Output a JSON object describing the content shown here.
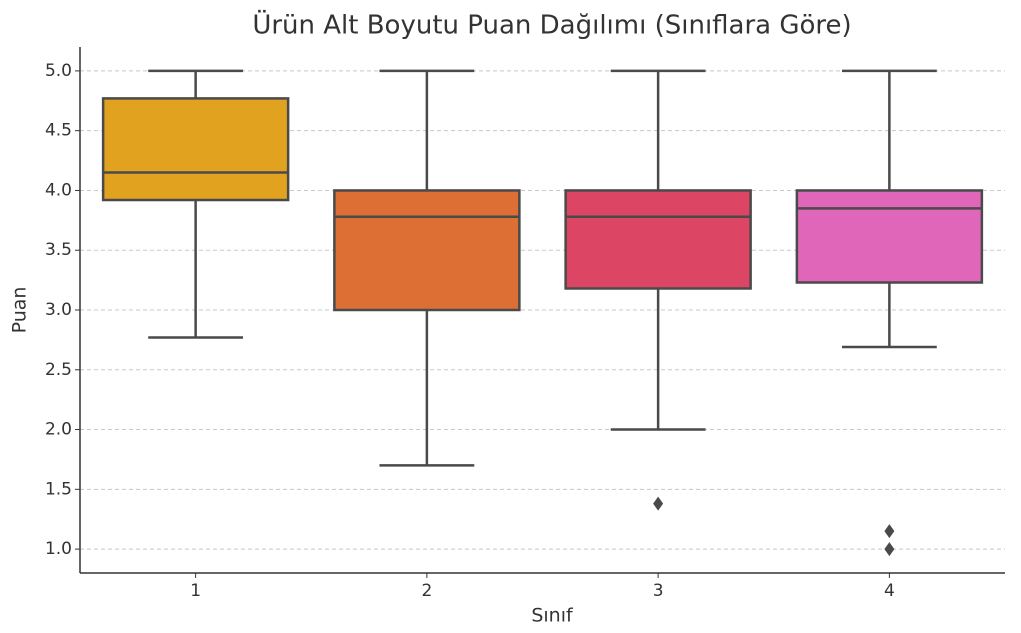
{
  "chart_data": {
    "type": "box",
    "title": "Ürün Alt Boyutu Puan Dağılımı (Sınıflara Göre)",
    "x_label": "Sınıf",
    "y_label": "Puan",
    "categories": [
      "1",
      "2",
      "3",
      "4"
    ],
    "boxes": [
      {
        "color": "#e0a21f",
        "min": 2.77,
        "q1": 3.92,
        "median": 4.15,
        "q3": 4.77,
        "max": 5.0,
        "outliers": []
      },
      {
        "color": "#dd6f35",
        "min": 1.7,
        "q1": 3.0,
        "median": 3.78,
        "q3": 4.0,
        "max": 5.0,
        "outliers": []
      },
      {
        "color": "#dc4563",
        "min": 2.0,
        "q1": 3.18,
        "median": 3.78,
        "q3": 4.0,
        "max": 5.0,
        "outliers": [
          1.38
        ]
      },
      {
        "color": "#e066b9",
        "min": 2.69,
        "q1": 3.23,
        "median": 3.85,
        "q3": 4.0,
        "max": 5.0,
        "outliers": [
          1.15,
          1.0
        ]
      }
    ],
    "ylim": [
      0.8,
      5.2
    ],
    "yticks": [
      {
        "value": 1,
        "label": "1.0"
      },
      1.5,
      {
        "value": 2,
        "label": "2.0"
      },
      2.5,
      {
        "value": 3,
        "label": "3.0"
      },
      3.5,
      {
        "value": 4,
        "label": "4.0"
      },
      4.5,
      {
        "value": 5,
        "label": "5.0"
      }
    ],
    "grid": true
  }
}
